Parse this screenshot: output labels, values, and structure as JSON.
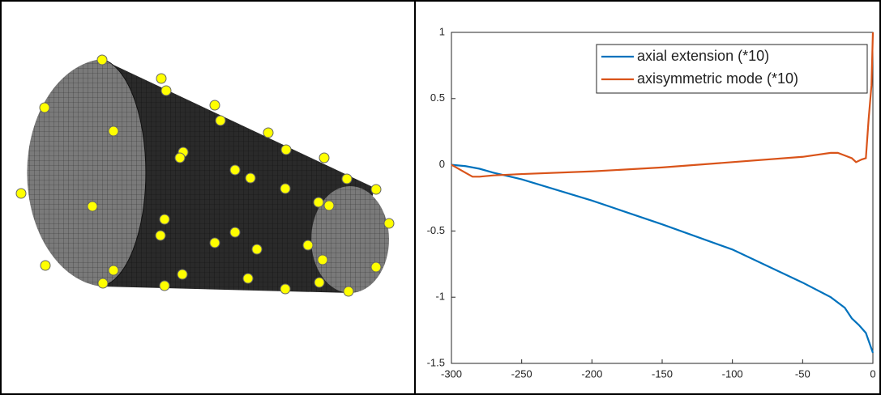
{
  "chart_data": {
    "type": "line",
    "xlim": [
      -300,
      0
    ],
    "xticks": [
      -300,
      -250,
      -200,
      -150,
      -100,
      -50,
      0
    ],
    "ylim": [
      -1.5,
      1
    ],
    "yticks": [
      -1.5,
      -1,
      -0.5,
      0,
      0.5,
      1
    ],
    "legend": "top-right",
    "series": [
      {
        "name": "axial extension (*10)",
        "color": "#0072bd",
        "x": [
          -300,
          -290,
          -280,
          -270,
          -250,
          -200,
          -150,
          -100,
          -50,
          -30,
          -20,
          -15,
          -10,
          -5,
          0
        ],
        "values": [
          0,
          -0.01,
          -0.03,
          -0.06,
          -0.11,
          -0.27,
          -0.45,
          -0.64,
          -0.89,
          -1.0,
          -1.08,
          -1.16,
          -1.21,
          -1.27,
          -1.42
        ]
      },
      {
        "name": "axisymmetric mode (*10)",
        "color": "#d95319",
        "x": [
          -300,
          -290,
          -285,
          -280,
          -270,
          -250,
          -200,
          -150,
          -100,
          -50,
          -30,
          -25,
          -20,
          -15,
          -12,
          -8,
          -5,
          -3,
          -1,
          0
        ],
        "values": [
          0,
          -0.06,
          -0.09,
          -0.09,
          -0.08,
          -0.07,
          -0.05,
          -0.02,
          0.02,
          0.06,
          0.09,
          0.09,
          0.07,
          0.05,
          0.02,
          0.04,
          0.05,
          0.35,
          0.6,
          1.0
        ]
      }
    ]
  }
}
